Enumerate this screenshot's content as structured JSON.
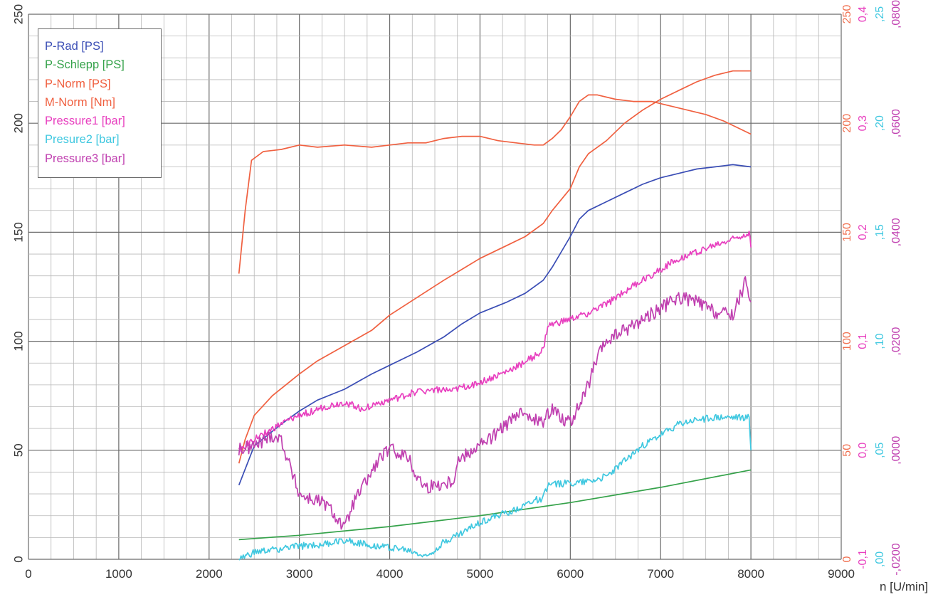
{
  "chart_data": {
    "type": "line",
    "title": "",
    "xlabel": "n [U/min]",
    "xlim": [
      0,
      9000
    ],
    "x_ticks": [
      "0",
      "1000",
      "2000",
      "3000",
      "4000",
      "5000",
      "6000",
      "7000",
      "8000",
      "9000"
    ],
    "ylim": [
      0,
      250
    ],
    "y_ticks_left": [
      "0",
      "50",
      "100",
      "150",
      "200",
      "250"
    ],
    "right_axes": [
      {
        "color": "#f07050",
        "ticks": [
          "0",
          "50",
          "100",
          "150",
          "200",
          "250"
        ]
      },
      {
        "color": "#e83fbf",
        "ticks": [
          "-0,1",
          "0,0",
          "0,1",
          "0,2",
          "0,3",
          "0,4"
        ]
      },
      {
        "color": "#40c8e0",
        "ticks": [
          ",00",
          ",05",
          ",10",
          ",15",
          ",20",
          ",25"
        ]
      },
      {
        "color": "#c040b0",
        "ticks": [
          "-,0200",
          ",0000",
          ",0200",
          ",0400",
          ",0600",
          ",0800"
        ]
      }
    ],
    "grid": true,
    "legend_position": "top-left",
    "series": [
      {
        "name": "P-Rad [PS]",
        "color": "#3a4db5",
        "x": [
          2330,
          2500,
          2800,
          3000,
          3200,
          3500,
          3800,
          4000,
          4300,
          4600,
          4800,
          5000,
          5300,
          5500,
          5700,
          5800,
          6000,
          6100,
          6200,
          6400,
          6600,
          6800,
          7000,
          7200,
          7400,
          7600,
          7800,
          8000
        ],
        "y": [
          34,
          52,
          62,
          68,
          73,
          78,
          85,
          89,
          95,
          102,
          108,
          113,
          118,
          122,
          128,
          134,
          148,
          156,
          160,
          164,
          168,
          172,
          175,
          177,
          179,
          180,
          181,
          180
        ]
      },
      {
        "name": "P-Schlepp [PS]",
        "color": "#35a24a",
        "x": [
          2330,
          3000,
          4000,
          5000,
          6000,
          7000,
          8000
        ],
        "y": [
          9,
          11,
          15,
          20,
          26,
          33,
          41
        ]
      },
      {
        "name": "P-Norm [PS]",
        "color": "#f06040",
        "x": [
          2330,
          2400,
          2500,
          2700,
          3000,
          3200,
          3500,
          3800,
          4000,
          4300,
          4600,
          4800,
          5000,
          5300,
          5500,
          5700,
          5800,
          6000,
          6100,
          6200,
          6400,
          6600,
          6800,
          7000,
          7200,
          7400,
          7600,
          7800,
          8000
        ],
        "y": [
          44,
          55,
          66,
          75,
          85,
          91,
          98,
          105,
          112,
          120,
          128,
          133,
          138,
          144,
          148,
          154,
          160,
          170,
          180,
          186,
          192,
          200,
          206,
          211,
          215,
          219,
          222,
          224,
          224
        ]
      },
      {
        "name": "M-Norm [Nm]",
        "color": "#f06040",
        "x": [
          2330,
          2400,
          2470,
          2600,
          2800,
          3000,
          3200,
          3500,
          3800,
          4000,
          4200,
          4400,
          4600,
          4800,
          5000,
          5200,
          5400,
          5600,
          5700,
          5800,
          5900,
          6000,
          6100,
          6200,
          6300,
          6500,
          6700,
          6900,
          7100,
          7300,
          7500,
          7700,
          8000
        ],
        "y": [
          131,
          160,
          183,
          187,
          188,
          190,
          189,
          190,
          189,
          190,
          191,
          191,
          193,
          194,
          194,
          192,
          191,
          190,
          190,
          193,
          197,
          203,
          210,
          213,
          213,
          211,
          210,
          210,
          208,
          206,
          204,
          201,
          195
        ]
      },
      {
        "name": "Pressure1  [bar]",
        "color": "#e83fbf",
        "x": [
          2330,
          2500,
          2800,
          3000,
          3300,
          3500,
          3700,
          3900,
          4100,
          4300,
          4500,
          4700,
          4750,
          5000,
          5300,
          5600,
          5700,
          5750,
          6000,
          6200,
          6400,
          6600,
          6800,
          7000,
          7200,
          7400,
          7600,
          7800,
          7980,
          8000
        ],
        "y": [
          50,
          55,
          62,
          66,
          70,
          72,
          69,
          72,
          74,
          77,
          78,
          77,
          78,
          81,
          86,
          93,
          96,
          107,
          110,
          113,
          117,
          123,
          128,
          133,
          138,
          141,
          144,
          147,
          150,
          143
        ]
      },
      {
        "name": "Presure2 [bar]",
        "color": "#40c8e0",
        "x": [
          2330,
          2500,
          2800,
          3000,
          3300,
          3500,
          3700,
          3900,
          4100,
          4300,
          4400,
          4600,
          4800,
          5000,
          5200,
          5400,
          5600,
          5700,
          5750,
          6000,
          6200,
          6400,
          6600,
          6800,
          7000,
          7200,
          7400,
          7600,
          7800,
          7980,
          8000
        ],
        "y": [
          0,
          3,
          5,
          6,
          7,
          9,
          7,
          6,
          5,
          3,
          1,
          8,
          12,
          17,
          20,
          23,
          27,
          28,
          34,
          35,
          36,
          38,
          45,
          52,
          57,
          62,
          64,
          65,
          65,
          65,
          50
        ]
      },
      {
        "name": "Pressure3 [bar]",
        "color": "#c040b0",
        "x": [
          2330,
          2500,
          2700,
          2800,
          2900,
          3000,
          3100,
          3200,
          3300,
          3400,
          3500,
          3600,
          3700,
          3800,
          3900,
          4000,
          4100,
          4200,
          4300,
          4400,
          4500,
          4600,
          4700,
          4750,
          4900,
          5100,
          5300,
          5500,
          5700,
          5800,
          5900,
          6000,
          6100,
          6200,
          6300,
          6400,
          6600,
          6800,
          7000,
          7200,
          7400,
          7600,
          7800,
          7950,
          8000
        ],
        "y": [
          50,
          52,
          57,
          55,
          42,
          30,
          28,
          27,
          25,
          20,
          14,
          26,
          33,
          40,
          47,
          50,
          49,
          47,
          38,
          33,
          34,
          35,
          36,
          45,
          50,
          55,
          62,
          68,
          62,
          70,
          65,
          63,
          70,
          80,
          92,
          100,
          105,
          110,
          115,
          120,
          118,
          113,
          112,
          128,
          118
        ]
      }
    ]
  }
}
